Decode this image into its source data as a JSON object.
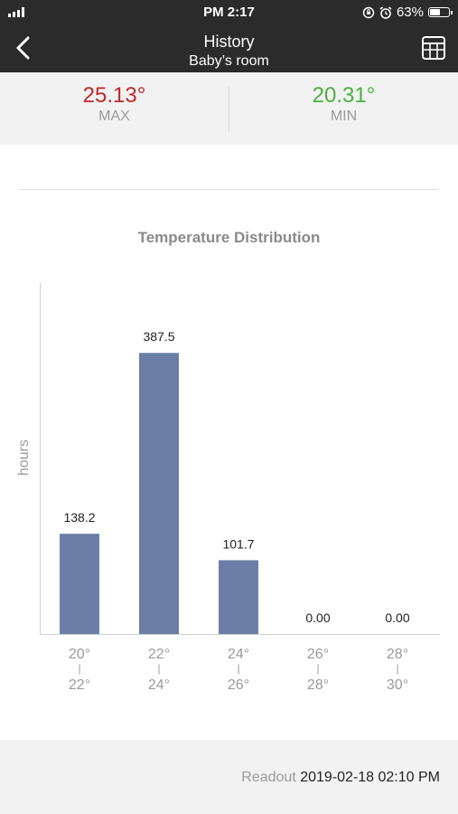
{
  "status_bar": {
    "time": "PM 2:17",
    "battery": "63%",
    "battery_level": 0.63
  },
  "nav": {
    "title": "History",
    "subtitle": "Baby’s room",
    "back_icon": "chevron-left-icon",
    "table_icon": "table-grid-icon"
  },
  "summary": {
    "max_value": "25.13°",
    "max_label": "MAX",
    "max_color": "#c0282d",
    "min_value": "20.31°",
    "min_label": "MIN",
    "min_color": "#4caf3f"
  },
  "chart_data": {
    "type": "bar",
    "title": "Temperature Distribution",
    "ylabel": "hours",
    "xlabel": "",
    "categories": [
      {
        "from": "20°",
        "sep": "|",
        "to": "22°"
      },
      {
        "from": "22°",
        "sep": "|",
        "to": "24°"
      },
      {
        "from": "24°",
        "sep": "|",
        "to": "26°"
      },
      {
        "from": "26°",
        "sep": "|",
        "to": "28°"
      },
      {
        "from": "28°",
        "sep": "|",
        "to": "30°"
      }
    ],
    "values": [
      138.2,
      387.5,
      101.7,
      0,
      0
    ],
    "value_labels": [
      "138.2",
      "387.5",
      "101.7",
      "0.00",
      "0.00"
    ],
    "ylim": [
      0,
      485
    ],
    "bar_color": "#6b7fa6",
    "grid": false
  },
  "footer": {
    "readout_label": "Readout",
    "readout_value": "2019-02-18 02:10 PM"
  }
}
